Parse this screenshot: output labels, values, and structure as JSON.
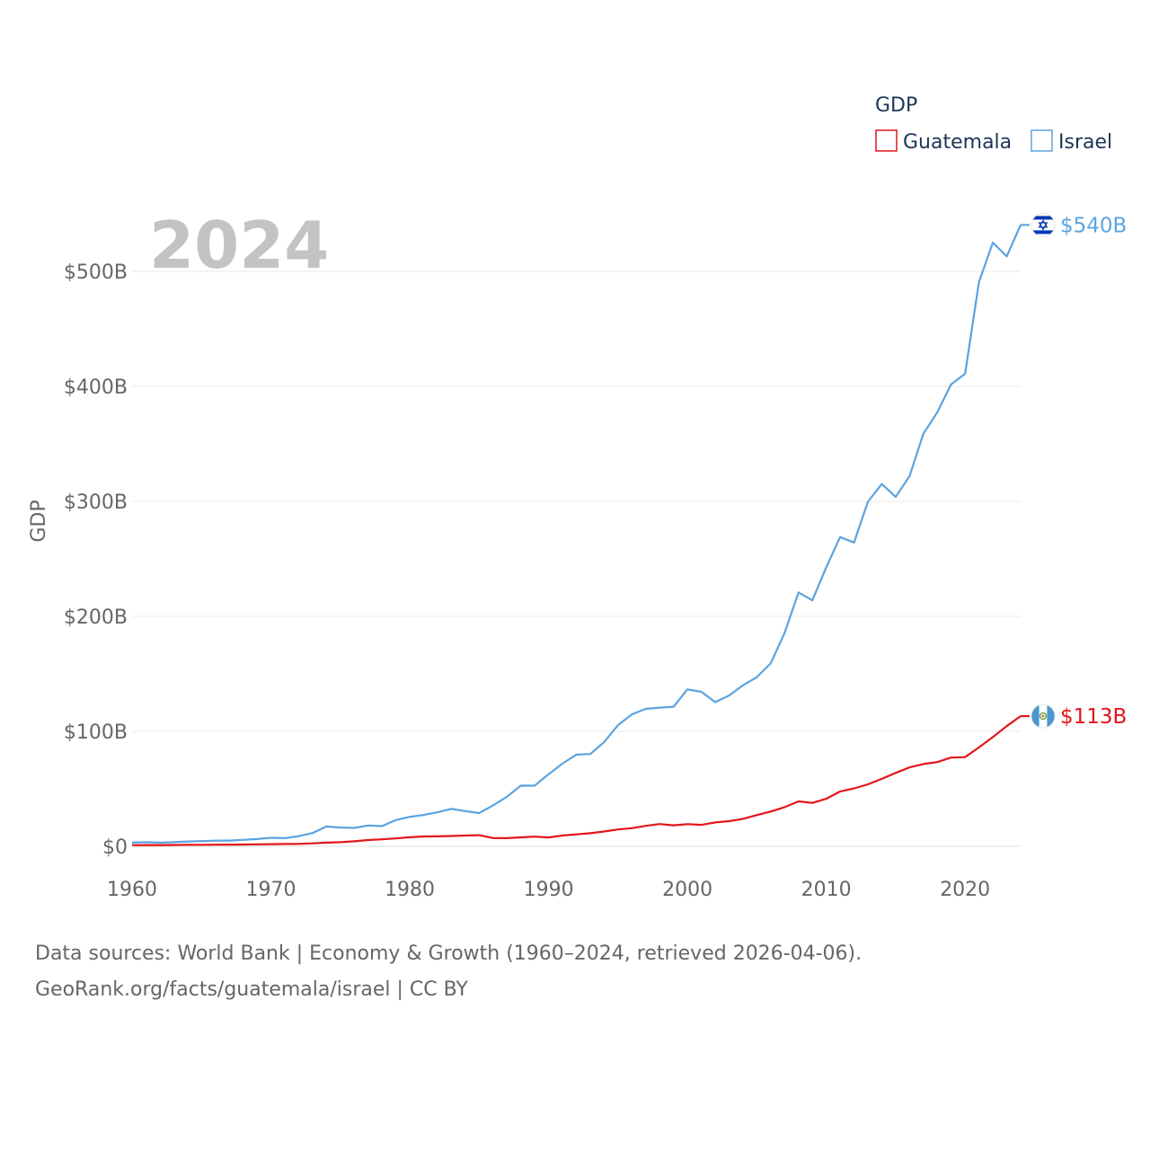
{
  "chart_data": {
    "type": "line",
    "title": "",
    "year_label": "2024",
    "ylabel": "GDP",
    "xlabel": "",
    "xlim": [
      1960,
      2024
    ],
    "ylim": [
      0,
      540
    ],
    "y_ticks": [
      {
        "value": 0,
        "label": "$0"
      },
      {
        "value": 100,
        "label": "$100B"
      },
      {
        "value": 200,
        "label": "$200B"
      },
      {
        "value": 300,
        "label": "$300B"
      },
      {
        "value": 400,
        "label": "$400B"
      },
      {
        "value": 500,
        "label": "$500B"
      }
    ],
    "x_ticks": [
      {
        "value": 1960,
        "label": "1960"
      },
      {
        "value": 1970,
        "label": "1970"
      },
      {
        "value": 1980,
        "label": "1980"
      },
      {
        "value": 1990,
        "label": "1990"
      },
      {
        "value": 2000,
        "label": "2000"
      },
      {
        "value": 2010,
        "label": "2010"
      },
      {
        "value": 2020,
        "label": "2020"
      }
    ],
    "legend": {
      "title": "GDP",
      "placement": "top-right"
    },
    "x": [
      1960,
      1961,
      1962,
      1963,
      1964,
      1965,
      1966,
      1967,
      1968,
      1969,
      1970,
      1971,
      1972,
      1973,
      1974,
      1975,
      1976,
      1977,
      1978,
      1979,
      1980,
      1981,
      1982,
      1983,
      1984,
      1985,
      1986,
      1987,
      1988,
      1989,
      1990,
      1991,
      1992,
      1993,
      1994,
      1995,
      1996,
      1997,
      1998,
      1999,
      2000,
      2001,
      2002,
      2003,
      2004,
      2005,
      2006,
      2007,
      2008,
      2009,
      2010,
      2011,
      2012,
      2013,
      2014,
      2015,
      2016,
      2017,
      2018,
      2019,
      2020,
      2021,
      2022,
      2023,
      2024
    ],
    "series": [
      {
        "name": "Guatemala",
        "color": "#e3151a",
        "end_label": "$113B",
        "values": [
          1.0,
          1.1,
          1.1,
          1.2,
          1.3,
          1.3,
          1.4,
          1.5,
          1.6,
          1.7,
          1.9,
          2.0,
          2.1,
          2.6,
          3.2,
          3.6,
          4.4,
          5.5,
          6.1,
          6.9,
          7.9,
          8.6,
          8.7,
          9.0,
          9.4,
          9.7,
          7.2,
          7.1,
          7.8,
          8.4,
          7.7,
          9.4,
          10.4,
          11.4,
          12.9,
          14.7,
          15.8,
          17.8,
          19.4,
          18.3,
          19.3,
          18.7,
          20.8,
          21.9,
          23.9,
          27.2,
          30.2,
          34.1,
          39.1,
          37.7,
          41.3,
          47.7,
          50.4,
          53.9,
          58.7,
          63.8,
          68.7,
          71.6,
          73.3,
          77.2,
          77.6,
          86.0,
          95.0,
          104.5,
          113.2
        ]
      },
      {
        "name": "Israel",
        "color": "#5ba3e0",
        "end_label": "$540B",
        "values": [
          3.2,
          3.6,
          3.2,
          3.6,
          4.2,
          4.5,
          4.9,
          5.0,
          5.6,
          6.3,
          7.4,
          7.1,
          8.8,
          11.6,
          17.3,
          16.3,
          16.0,
          18.1,
          17.6,
          22.8,
          25.6,
          27.3,
          29.6,
          32.6,
          30.6,
          28.9,
          35.6,
          43.1,
          52.8,
          52.7,
          62.7,
          71.9,
          79.8,
          80.2,
          90.6,
          105.4,
          114.8,
          119.5,
          120.6,
          121.3,
          136.5,
          134.4,
          125.4,
          131.2,
          140.0,
          147.1,
          159.1,
          185.6,
          220.8,
          213.9,
          242.7,
          268.9,
          264.2,
          299.6,
          315.1,
          303.8,
          322.0,
          358.8,
          377.5,
          401.8,
          410.9,
          490.6,
          525.0,
          513.0,
          540.3
        ]
      }
    ]
  },
  "legend_items": [
    {
      "label": "Guatemala"
    },
    {
      "label": "Israel"
    }
  ],
  "footer": {
    "line1": "Data sources: World Bank | Economy & Growth (1960–2024, retrieved 2026-04-06).",
    "line2": "GeoRank.org/facts/guatemala/israel | CC BY"
  }
}
